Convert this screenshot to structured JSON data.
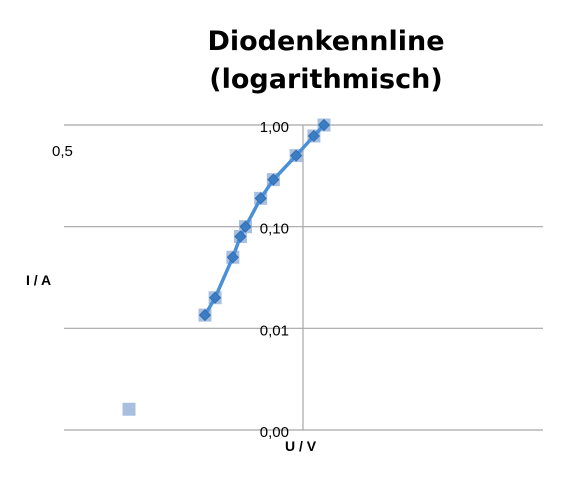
{
  "chart_data": {
    "type": "scatter",
    "title_lines": [
      "Diodenkennline",
      "(logarithmisch)"
    ],
    "ylabel": "I / A",
    "xlabel": "U / V",
    "y_scale": "log",
    "y_ticks": [
      {
        "value": 0.001,
        "label": "0,00"
      },
      {
        "value": 0.01,
        "label": "0,01"
      },
      {
        "value": 0.1,
        "label": "0,10"
      },
      {
        "value": 1,
        "label": "1,00"
      }
    ],
    "ylim": [
      0.001,
      1
    ],
    "gridlines": true,
    "side_text": "0,5",
    "series": [
      {
        "marker": "square",
        "color": "#a8bfe0",
        "points": [
          {
            "x": 0.31,
            "y": 0.0016
          },
          {
            "x": 0.46,
            "y": 0.0135
          },
          {
            "x": 0.48,
            "y": 0.02
          },
          {
            "x": 0.515,
            "y": 0.05
          },
          {
            "x": 0.53,
            "y": 0.08
          },
          {
            "x": 0.54,
            "y": 0.1
          },
          {
            "x": 0.57,
            "y": 0.19
          },
          {
            "x": 0.595,
            "y": 0.29
          },
          {
            "x": 0.64,
            "y": 0.5
          },
          {
            "x": 0.675,
            "y": 0.78
          },
          {
            "x": 0.695,
            "y": 1.0
          }
        ]
      },
      {
        "marker": "diamond",
        "line": true,
        "color": "#4a90d9",
        "marker_color": "#3b7dc4",
        "points": [
          {
            "x": 0.46,
            "y": 0.0135
          },
          {
            "x": 0.48,
            "y": 0.02
          },
          {
            "x": 0.515,
            "y": 0.05
          },
          {
            "x": 0.53,
            "y": 0.08
          },
          {
            "x": 0.54,
            "y": 0.1
          },
          {
            "x": 0.57,
            "y": 0.19
          },
          {
            "x": 0.595,
            "y": 0.29
          },
          {
            "x": 0.64,
            "y": 0.5
          },
          {
            "x": 0.675,
            "y": 0.78
          },
          {
            "x": 0.695,
            "y": 1.0
          }
        ]
      }
    ]
  }
}
